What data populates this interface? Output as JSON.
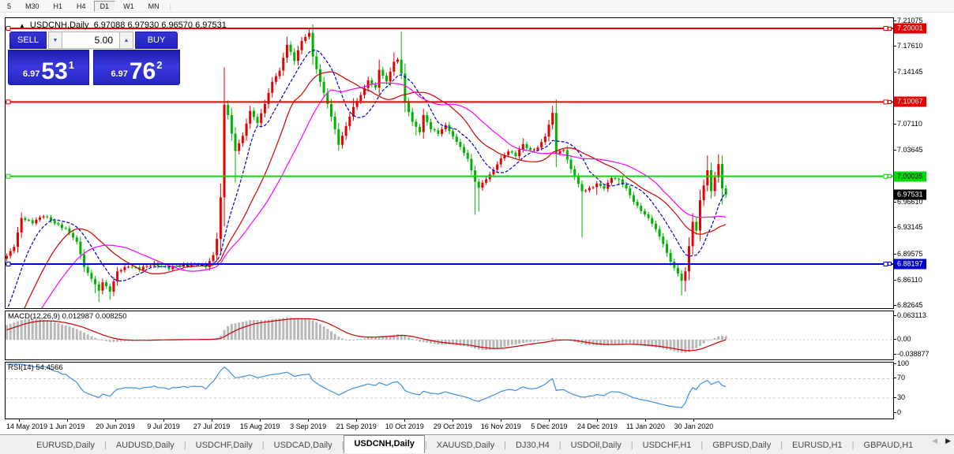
{
  "toolbar": {
    "buttons": [
      "5",
      "M30",
      "H1",
      "H4",
      "D1",
      "W1",
      "MN"
    ],
    "active": "D1"
  },
  "title": {
    "marker": "▲",
    "symbol": "USDCNH,Daily",
    "open": "6.97088",
    "high": "6.97930",
    "low": "6.96570",
    "close": "6.97531"
  },
  "trade_panel": {
    "sell_label": "SELL",
    "buy_label": "BUY",
    "volume": "5.00",
    "sell_price": {
      "small": "6.97",
      "big": "53",
      "sup": "1"
    },
    "buy_price": {
      "small": "6.97",
      "big": "76",
      "sup": "2"
    }
  },
  "chart_data": {
    "type": "candlestick",
    "symbol": "USDCNH",
    "timeframe": "Daily",
    "bars": 196,
    "colors": {
      "bull": "#e60000",
      "bear": "#00b300",
      "ma_fast": "#0000cc",
      "ma_mid": "#d40000",
      "ma_slow": "#ff00ff",
      "macd_hist": "#b8b8b8",
      "macd_signal": "#cc0000",
      "rsi": "#4090e0",
      "level_red": "#e60000",
      "level_green": "#00dd00",
      "level_blue": "#0000cc",
      "current_bg": "#000000"
    },
    "y_axis_ticks": [
      7.21075,
      7.1761,
      7.14145,
      7.0711,
      7.03645,
      6.9661,
      6.93145,
      6.89575,
      6.8611,
      6.82645
    ],
    "levels": [
      {
        "price": 7.20001,
        "label": "7.20001",
        "color": "#e60000",
        "text_color": "#ffffff"
      },
      {
        "price": 7.10067,
        "label": "7.10067",
        "color": "#e60000",
        "text_color": "#ffffff"
      },
      {
        "price": 7.00035,
        "label": "7.00035",
        "color": "#00dd00",
        "text_color": "#000000"
      },
      {
        "price": 6.88197,
        "label": "6.88197",
        "color": "#0000cc",
        "text_color": "#ffffff"
      }
    ],
    "current_price": {
      "price": 6.97531,
      "label": "6.97531"
    },
    "x_axis_labels": [
      "14 May 2019",
      "1 Jun 2019",
      "20 Jun 2019",
      "9 Jul 2019",
      "27 Jul 2019",
      "15 Aug 2019",
      "3 Sep 2019",
      "21 Sep 2019",
      "10 Oct 2019",
      "29 Oct 2019",
      "16 Nov 2019",
      "5 Dec 2019",
      "24 Dec 2019",
      "11 Jan 2020",
      "30 Jan 2020"
    ],
    "price_keyframes": [
      [
        0,
        6.893
      ],
      [
        2,
        6.905
      ],
      [
        4,
        6.944
      ],
      [
        7,
        6.939
      ],
      [
        10,
        6.947
      ],
      [
        13,
        6.937
      ],
      [
        16,
        6.93
      ],
      [
        19,
        6.912
      ],
      [
        21,
        6.878
      ],
      [
        23,
        6.862
      ],
      [
        25,
        6.847
      ],
      [
        26,
        6.858
      ],
      [
        28,
        6.845
      ],
      [
        30,
        6.872
      ],
      [
        33,
        6.88
      ],
      [
        36,
        6.875
      ],
      [
        40,
        6.882
      ],
      [
        44,
        6.8765
      ],
      [
        48,
        6.8805
      ],
      [
        52,
        6.8835
      ],
      [
        54,
        6.878
      ],
      [
        56,
        6.894
      ],
      [
        57,
        6.916
      ],
      [
        58,
        6.972
      ],
      [
        59,
        7.097
      ],
      [
        60,
        7.083
      ],
      [
        61,
        7.058
      ],
      [
        62,
        7.035
      ],
      [
        64,
        7.055
      ],
      [
        66,
        7.088
      ],
      [
        68,
        7.073
      ],
      [
        70,
        7.098
      ],
      [
        72,
        7.128
      ],
      [
        74,
        7.143
      ],
      [
        76,
        7.178
      ],
      [
        78,
        7.158
      ],
      [
        80,
        7.183
      ],
      [
        82,
        7.194
      ],
      [
        83,
        7.162
      ],
      [
        85,
        7.128
      ],
      [
        87,
        7.098
      ],
      [
        89,
        7.064
      ],
      [
        90,
        7.042
      ],
      [
        92,
        7.068
      ],
      [
        94,
        7.094
      ],
      [
        96,
        7.11
      ],
      [
        98,
        7.129
      ],
      [
        100,
        7.12
      ],
      [
        101,
        7.144
      ],
      [
        103,
        7.128
      ],
      [
        105,
        7.155
      ],
      [
        106,
        7.158
      ],
      [
        107,
        7.139
      ],
      [
        108,
        7.1
      ],
      [
        110,
        7.074
      ],
      [
        112,
        7.06
      ],
      [
        113,
        7.083
      ],
      [
        115,
        7.064
      ],
      [
        117,
        7.058
      ],
      [
        119,
        7.069
      ],
      [
        121,
        7.054
      ],
      [
        123,
        7.04
      ],
      [
        125,
        7.024
      ],
      [
        127,
        6.993
      ],
      [
        128,
        6.986
      ],
      [
        130,
        6.997
      ],
      [
        132,
        7.009
      ],
      [
        134,
        7.024
      ],
      [
        136,
        7.034
      ],
      [
        138,
        7.029
      ],
      [
        140,
        7.044
      ],
      [
        142,
        7.034
      ],
      [
        144,
        7.039
      ],
      [
        146,
        7.054
      ],
      [
        148,
        7.086
      ],
      [
        149,
        7.031
      ],
      [
        151,
        7.036
      ],
      [
        153,
        7.01
      ],
      [
        155,
        6.99
      ],
      [
        156,
        6.981
      ],
      [
        158,
        6.984
      ],
      [
        160,
        6.989
      ],
      [
        162,
        6.984
      ],
      [
        164,
        6.999
      ],
      [
        166,
        6.996
      ],
      [
        168,
        6.984
      ],
      [
        170,
        6.966
      ],
      [
        172,
        6.954
      ],
      [
        174,
        6.944
      ],
      [
        176,
        6.929
      ],
      [
        178,
        6.909
      ],
      [
        180,
        6.885
      ],
      [
        182,
        6.869
      ],
      [
        183,
        6.861
      ],
      [
        184,
        6.872
      ],
      [
        185,
        6.906
      ],
      [
        186,
        6.939
      ],
      [
        187,
        6.927
      ],
      [
        188,
        6.968
      ],
      [
        189,
        6.988
      ],
      [
        190,
        7.009
      ],
      [
        191,
        6.981
      ],
      [
        192,
        6.999
      ],
      [
        193,
        7.017
      ],
      [
        194,
        6.984
      ],
      [
        195,
        6.97531
      ]
    ],
    "wick_extensions": {
      "24": [
        0,
        0.008
      ],
      "25": [
        0,
        0.011
      ],
      "28": [
        0,
        0.007
      ],
      "59": [
        0.011,
        0
      ],
      "62": [
        0,
        0.034
      ],
      "76": [
        0.004,
        0
      ],
      "82": [
        0.0035,
        0
      ],
      "94": [
        0.006,
        0
      ],
      "101": [
        0.005,
        0
      ],
      "105": [
        0.007,
        0
      ],
      "107": [
        0.03,
        0
      ],
      "111": [
        0,
        0.008
      ],
      "127": [
        0,
        0.038
      ],
      "128": [
        0,
        0.028
      ],
      "140": [
        0.004,
        0
      ],
      "148": [
        0.003,
        0
      ],
      "156": [
        0,
        0.058
      ],
      "160": [
        0,
        0.007
      ],
      "166": [
        0,
        0.006
      ],
      "183": [
        0,
        0.015
      ],
      "184": [
        0,
        0.009
      ],
      "190": [
        0.012,
        0
      ],
      "193": [
        0.006,
        0
      ],
      "194": [
        0,
        0.01
      ]
    },
    "prehistory_keyframes": [
      [
        -36,
        6.708
      ],
      [
        -24,
        6.71
      ],
      [
        -16,
        6.718
      ],
      [
        -11,
        6.742
      ],
      [
        -7,
        6.78
      ],
      [
        -4,
        6.822
      ],
      [
        -2,
        6.85
      ],
      [
        -1,
        6.87
      ]
    ],
    "moving_averages": [
      {
        "period": 10,
        "color": "#0000cc",
        "dash": "4 2"
      },
      {
        "period": 20,
        "color": "#d40000",
        "dash": ""
      },
      {
        "period": 30,
        "color": "#ff00ff",
        "dash": ""
      }
    ],
    "macd": {
      "label": "MACD(12,26,9)",
      "value": "0.012987",
      "signal_value": "0.008250",
      "fast": 12,
      "slow": 26,
      "signal": 9,
      "axis": [
        {
          "v": 0.063113,
          "label": "0.063113"
        },
        {
          "v": 0,
          "label": "0.00"
        },
        {
          "v": -0.038877,
          "label": "-0.038877"
        }
      ]
    },
    "rsi": {
      "label": "RSI(14)",
      "value": "54.4566",
      "period": 14,
      "bands": [
        70,
        30
      ],
      "axis": [
        {
          "v": 100,
          "label": "100"
        },
        {
          "v": 70,
          "label": "70"
        },
        {
          "v": 30,
          "label": "30"
        },
        {
          "v": 0,
          "label": "0"
        }
      ]
    }
  },
  "tabs": {
    "items": [
      "EURUSD,Daily",
      "AUDUSD,Daily",
      "USDCHF,Daily",
      "USDCAD,Daily",
      "USDCNH,Daily",
      "XAUUSD,Daily",
      "DJ30,H4",
      "USDOil,Daily",
      "USDCHF,H1",
      "GBPUSD,Daily",
      "EURUSD,H1",
      "GBPAUD,H1"
    ],
    "active_index": 4,
    "scroll_left": "◀",
    "scroll_right": "▶"
  }
}
